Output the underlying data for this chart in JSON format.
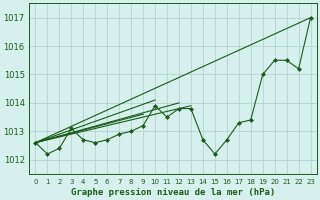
{
  "title": "Graphe pression niveau de la mer (hPa)",
  "bg_color": "#d6f0ee",
  "grid_color": "#b8d8d4",
  "line_color": "#1a5c1a",
  "xlim": [
    -0.5,
    23.5
  ],
  "ylim": [
    1011.5,
    1017.5
  ],
  "yticks": [
    1012,
    1013,
    1014,
    1015,
    1016,
    1017
  ],
  "xticks": [
    0,
    1,
    2,
    3,
    4,
    5,
    6,
    7,
    8,
    9,
    10,
    11,
    12,
    13,
    14,
    15,
    16,
    17,
    18,
    19,
    20,
    21,
    22,
    23
  ],
  "main_series": [
    1012.6,
    1012.2,
    1012.4,
    1013.1,
    1012.7,
    1012.6,
    1012.7,
    1012.9,
    1013.0,
    1013.2,
    1013.9,
    1013.5,
    1013.8,
    1013.8,
    1012.7,
    1012.2,
    1012.7,
    1013.3,
    1013.4,
    1015.0,
    1015.5,
    1015.5,
    1015.2,
    1017.0
  ],
  "trend_lines": [
    {
      "x0": 0,
      "y0": 1012.6,
      "x1": 23,
      "y1": 1017.0
    },
    {
      "x0": 0,
      "y0": 1012.6,
      "x1": 13,
      "y1": 1013.9
    },
    {
      "x0": 0,
      "y0": 1012.6,
      "x1": 12,
      "y1": 1014.0
    },
    {
      "x0": 0,
      "y0": 1012.6,
      "x1": 10,
      "y1": 1014.1
    },
    {
      "x0": 0,
      "y0": 1012.6,
      "x1": 9,
      "y1": 1013.6
    }
  ]
}
